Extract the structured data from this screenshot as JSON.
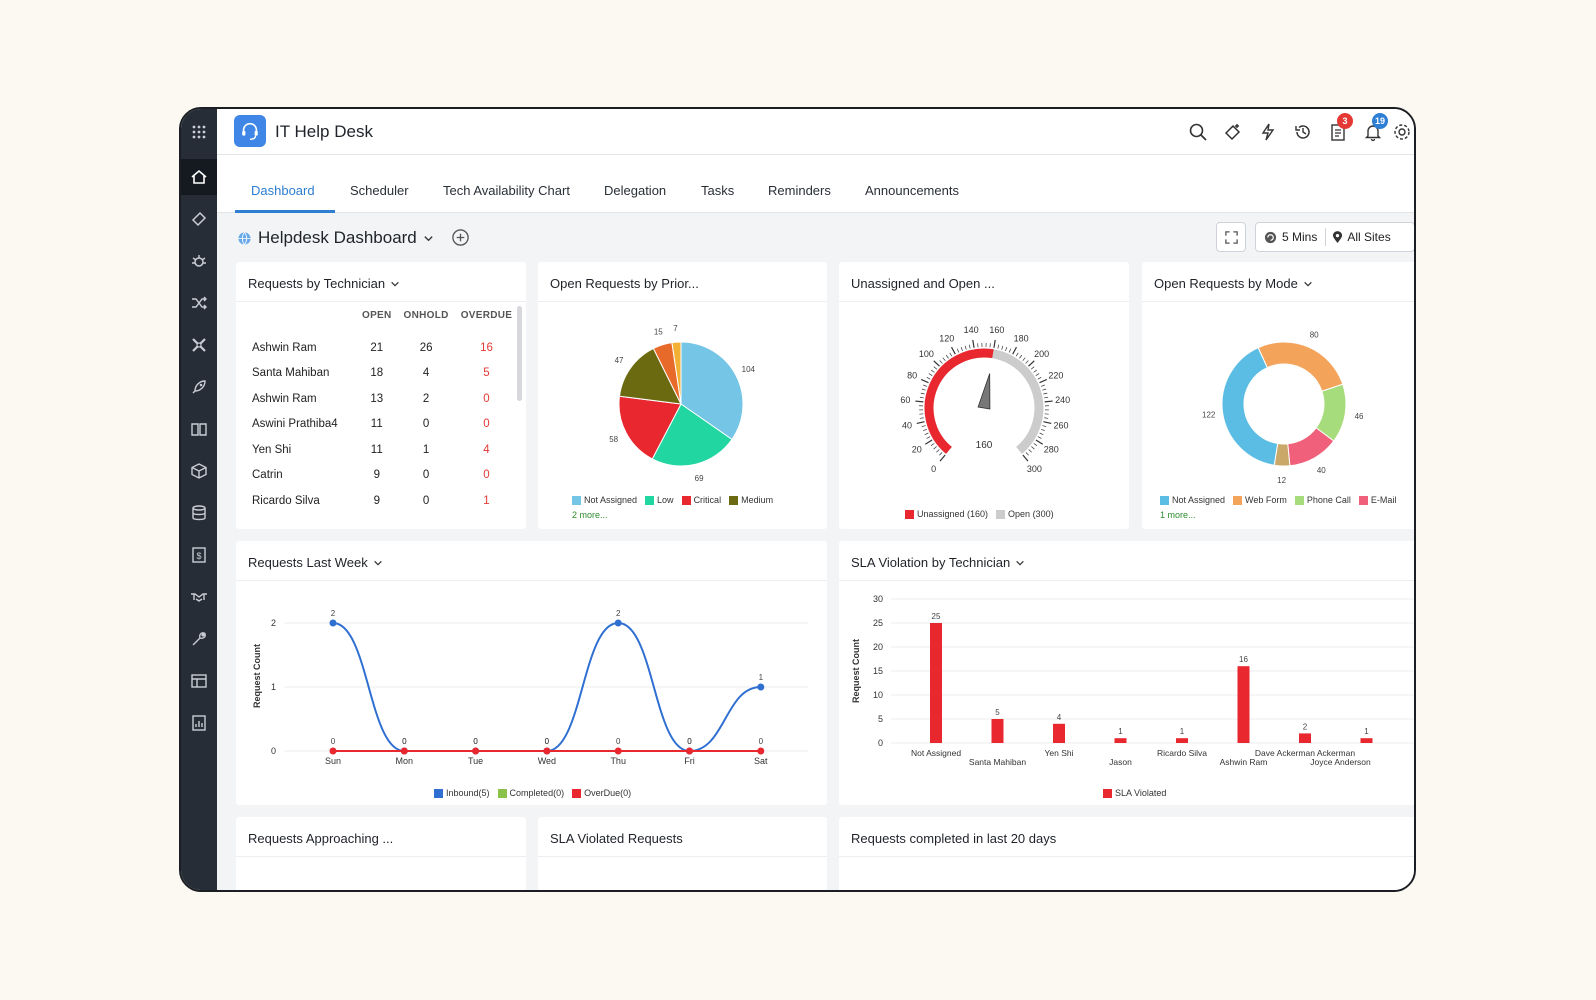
{
  "app": {
    "title": "IT Help Desk"
  },
  "topbar": {
    "task_badge": "3",
    "notification_badge": "19"
  },
  "tabs": [
    "Dashboard",
    "Scheduler",
    "Tech Availability Chart",
    "Delegation",
    "Tasks",
    "Reminders",
    "Announcements"
  ],
  "dashboard": {
    "title": "Helpdesk Dashboard",
    "refresh": "5 Mins",
    "sites": "All Sites"
  },
  "widgets": {
    "technician": {
      "title": "Requests by Technician",
      "columns": [
        "OPEN",
        "ONHOLD",
        "OVERDUE"
      ],
      "rows": [
        {
          "name": "Ashwin Ram",
          "open": "21",
          "onhold": "26",
          "overdue": "16"
        },
        {
          "name": "Santa Mahiban",
          "open": "18",
          "onhold": "4",
          "overdue": "5"
        },
        {
          "name": "Ashwin Ram",
          "open": "13",
          "onhold": "2",
          "overdue": "0"
        },
        {
          "name": "Aswini Prathiba4",
          "open": "11",
          "onhold": "0",
          "overdue": "0"
        },
        {
          "name": "Yen Shi",
          "open": "11",
          "onhold": "1",
          "overdue": "4"
        },
        {
          "name": "Catrin",
          "open": "9",
          "onhold": "0",
          "overdue": "0"
        },
        {
          "name": "Ricardo Silva",
          "open": "9",
          "onhold": "0",
          "overdue": "1"
        }
      ]
    },
    "priority": {
      "title": "Open Requests by Prior...",
      "more": "2 more...",
      "legend": [
        {
          "name": "Not Assigned",
          "color": "#74c5e6"
        },
        {
          "name": "Low",
          "color": "#22d6a1"
        },
        {
          "name": "Critical",
          "color": "#e8272f"
        },
        {
          "name": "Medium",
          "color": "#6b6a10"
        }
      ]
    },
    "unassigned": {
      "title": "Unassigned and Open ...",
      "legend": [
        {
          "name": "Unassigned (160)",
          "color": "#e8272f"
        },
        {
          "name": "Open (300)",
          "color": "#cccccc"
        }
      ]
    },
    "mode": {
      "title": "Open Requests by Mode",
      "more": "1 more...",
      "legend": [
        {
          "name": "Not Assigned",
          "color": "#5bbde3"
        },
        {
          "name": "Web Form",
          "color": "#f4a35a"
        },
        {
          "name": "Phone Call",
          "color": "#a6dc7b"
        },
        {
          "name": "E-Mail",
          "color": "#f0607a"
        }
      ]
    },
    "lastweek": {
      "title": "Requests Last Week",
      "legend": [
        {
          "name": "Inbound(5)",
          "color": "#2f6fd1"
        },
        {
          "name": "Completed(0)",
          "color": "#8bc34a"
        },
        {
          "name": "OverDue(0)",
          "color": "#e8272f"
        }
      ]
    },
    "sla": {
      "title": "SLA Violation by Technician",
      "legend": [
        {
          "name": "SLA Violated",
          "color": "#e8272f"
        }
      ]
    },
    "approaching": {
      "title": "Requests Approaching ..."
    },
    "sla_requests": {
      "title": "SLA Violated Requests"
    },
    "completed": {
      "title": "Requests completed in last 20 days"
    }
  },
  "chart_data": [
    {
      "type": "pie",
      "categories": [
        "Not Assigned",
        "Low",
        "Critical",
        "Medium",
        "",
        ""
      ],
      "values": [
        104,
        69,
        58,
        47,
        15,
        7
      ]
    },
    {
      "type": "gauge",
      "value": 160,
      "min": 0,
      "max": 300,
      "ticks": [
        0,
        20,
        40,
        60,
        80,
        100,
        120,
        140,
        160,
        180,
        200,
        220,
        240,
        260,
        280,
        300
      ],
      "series": [
        {
          "name": "Unassigned",
          "value": 160
        },
        {
          "name": "Open",
          "value": 300
        }
      ]
    },
    {
      "type": "pie",
      "categories": [
        "Not Assigned",
        "Web Form",
        "Phone Call",
        "E-Mail",
        ""
      ],
      "values": [
        122,
        80,
        46,
        40,
        12
      ]
    },
    {
      "type": "line",
      "categories": [
        "Sun",
        "Mon",
        "Tue",
        "Wed",
        "Thu",
        "Fri",
        "Sat"
      ],
      "series": [
        {
          "name": "Inbound(5)",
          "values": [
            2,
            0,
            0,
            0,
            2,
            0,
            1
          ]
        },
        {
          "name": "OverDue(0)",
          "values": [
            0,
            0,
            0,
            0,
            0,
            0,
            0
          ]
        }
      ],
      "ylabel": "Request Count",
      "ylim": [
        0,
        2
      ],
      "yticks": [
        0,
        1,
        2
      ]
    },
    {
      "type": "bar",
      "categories": [
        "Not Assigned",
        "Santa Mahiban",
        "Yen Shi",
        "Jason",
        "Ricardo Silva",
        "Ashwin Ram",
        "Dave Ackerman Ackerman",
        "Joyce Anderson"
      ],
      "series": [
        {
          "name": "SLA Violated",
          "values": [
            25,
            5,
            4,
            1,
            1,
            16,
            2,
            1
          ]
        }
      ],
      "ylabel": "Request Count",
      "ylim": [
        0,
        30
      ],
      "yticks": [
        0,
        5,
        10,
        15,
        20,
        25,
        30
      ]
    }
  ]
}
